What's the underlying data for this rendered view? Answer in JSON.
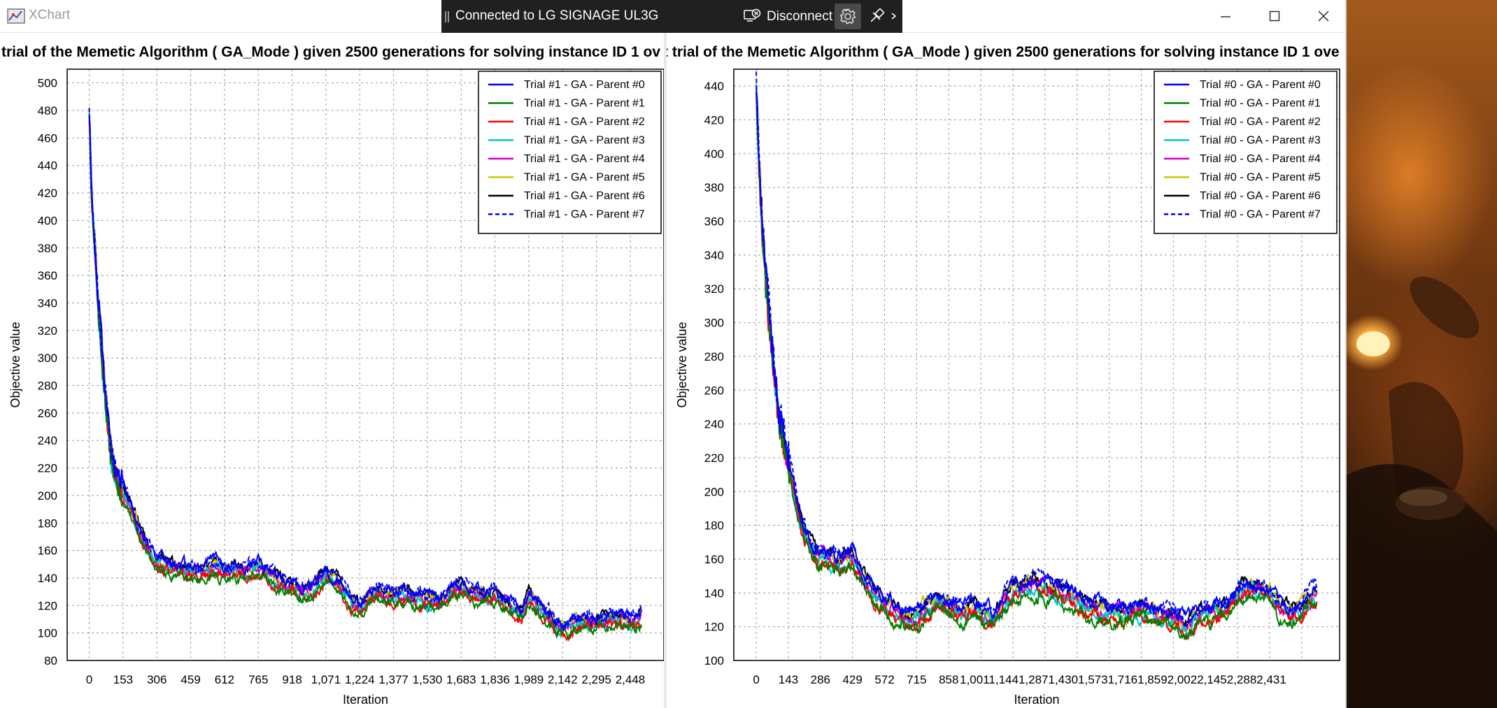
{
  "window": {
    "title": "XChart",
    "controls": {
      "minimize": "minimize",
      "maximize": "maximize",
      "close": "close"
    }
  },
  "remote_bar": {
    "status": "Connected to LG SIGNAGE UL3G",
    "disconnect_label": "Disconnect",
    "icons": [
      "grip-icon",
      "disconnect-icon",
      "gear-icon",
      "pin-icon",
      "chevron-right-icon"
    ]
  },
  "colors": {
    "series": [
      "#0000ff",
      "#008000",
      "#ff0000",
      "#00c8c8",
      "#c800c8",
      "#c8c800",
      "#000000",
      "#0000ff"
    ],
    "grid": "#9a9a9a"
  },
  "chart_data": [
    {
      "type": "line",
      "title": "trial of the Memetic Algorithm ( GA_Mode ) given 2500 generations for solving instance ID 1 ov",
      "xlabel": "Iteration",
      "ylabel": "Objective value",
      "xlim": [
        -100,
        2600
      ],
      "ylim": [
        80,
        510
      ],
      "yticks": [
        80,
        100,
        120,
        140,
        160,
        180,
        200,
        220,
        240,
        260,
        280,
        300,
        320,
        340,
        360,
        380,
        400,
        420,
        440,
        460,
        480,
        500
      ],
      "xticks": [
        0,
        153,
        306,
        459,
        612,
        765,
        918,
        1071,
        1224,
        1377,
        1530,
        1683,
        1836,
        1989,
        2142,
        2295,
        2448
      ],
      "xtick_labels": [
        "0",
        "153",
        "306",
        "459",
        "612",
        "765",
        "918",
        "1,071",
        "1,224",
        "1,377",
        "1,530",
        "1,683",
        "1,836",
        "1,989",
        "2,142",
        "2,295",
        "2,448"
      ],
      "grid": true,
      "legend_position": "top-right",
      "series_names": [
        "Trial #1 - GA - Parent #0",
        "Trial #1 - GA - Parent #1",
        "Trial #1 - GA - Parent #2",
        "Trial #1 - GA - Parent #3",
        "Trial #1 - GA - Parent #4",
        "Trial #1 - GA - Parent #5",
        "Trial #1 - GA - Parent #6",
        "Trial #1 - GA - Parent #7"
      ],
      "trend": {
        "x": [
          0,
          10,
          25,
          40,
          60,
          80,
          100,
          130,
          160,
          200,
          250,
          306,
          360,
          420,
          459,
          500,
          560,
          612,
          660,
          700,
          765,
          820,
          860,
          918,
          960,
          1000,
          1071,
          1120,
          1180,
          1224,
          1260,
          1300,
          1377,
          1430,
          1480,
          1530,
          1600,
          1640,
          1683,
          1740,
          1800,
          1836,
          1900,
          1960,
          1989,
          2040,
          2100,
          2142,
          2200,
          2260,
          2295,
          2350,
          2400,
          2448,
          2500
        ],
        "y": [
          480,
          420,
          380,
          340,
          300,
          260,
          225,
          210,
          200,
          185,
          165,
          150,
          148,
          145,
          145,
          143,
          148,
          145,
          146,
          145,
          148,
          142,
          136,
          133,
          128,
          130,
          142,
          136,
          124,
          118,
          124,
          130,
          127,
          128,
          125,
          124,
          123,
          130,
          133,
          128,
          127,
          128,
          120,
          112,
          128,
          118,
          108,
          103,
          107,
          108,
          108,
          110,
          110,
          108,
          112
        ]
      },
      "band": [
        -7,
        5
      ]
    },
    {
      "type": "line",
      "title": "t trial of the Memetic Algorithm ( GA_Mode ) given 2500 generations for solving instance ID 1 ove",
      "xlabel": "Iteration",
      "ylabel": "Objective value",
      "xlim": [
        -100,
        2600
      ],
      "ylim": [
        100,
        450
      ],
      "yticks": [
        100,
        120,
        140,
        160,
        180,
        200,
        220,
        240,
        260,
        280,
        300,
        320,
        340,
        360,
        380,
        400,
        420,
        440
      ],
      "xticks": [
        0,
        143,
        286,
        429,
        572,
        715,
        858,
        1001,
        1144,
        1287,
        1430,
        1573,
        1716,
        1859,
        2002,
        2145,
        2288,
        2431
      ],
      "xtick_labels": [
        "0",
        "143",
        "286",
        "429",
        "572",
        "715",
        "858",
        "1,001",
        "1,144",
        "1,287",
        "1,430",
        "1,573",
        "1,716",
        "1,859",
        "2,002",
        "2,145",
        "2,288",
        "2,431"
      ],
      "xtick_rendered": [
        "0",
        "143",
        "286",
        "429",
        "572",
        "715",
        "858",
        "1,0011,1441,2871,4301,5731,7161,8592,0022,1452,2882,431"
      ],
      "grid": true,
      "legend_position": "top-right",
      "series_names": [
        "Trial #0 - GA - Parent #0",
        "Trial #0 - GA - Parent #1",
        "Trial #0 - GA - Parent #2",
        "Trial #0 - GA - Parent #3",
        "Trial #0 - GA - Parent #4",
        "Trial #0 - GA - Parent #5",
        "Trial #0 - GA - Parent #6",
        "Trial #0 - GA - Parent #7"
      ],
      "trend": {
        "x": [
          0,
          10,
          25,
          40,
          60,
          80,
          100,
          130,
          160,
          200,
          250,
          286,
          330,
          380,
          429,
          470,
          520,
          572,
          620,
          660,
          715,
          760,
          800,
          858,
          920,
          980,
          1001,
          1060,
          1100,
          1144,
          1200,
          1287,
          1350,
          1400,
          1430,
          1500,
          1573,
          1640,
          1716,
          1780,
          1859,
          1920,
          2002,
          2060,
          2100,
          2145,
          2200,
          2288,
          2340,
          2400,
          2431,
          2480,
          2500
        ],
        "y": [
          440,
          400,
          360,
          330,
          300,
          270,
          245,
          225,
          205,
          180,
          165,
          160,
          160,
          158,
          162,
          150,
          140,
          135,
          128,
          125,
          125,
          130,
          135,
          132,
          128,
          130,
          128,
          125,
          135,
          142,
          145,
          143,
          140,
          138,
          135,
          130,
          128,
          127,
          130,
          128,
          125,
          120,
          130,
          128,
          132,
          140,
          142,
          140,
          130,
          128,
          130,
          140,
          138
        ]
      },
      "band": [
        -7,
        5
      ]
    }
  ]
}
